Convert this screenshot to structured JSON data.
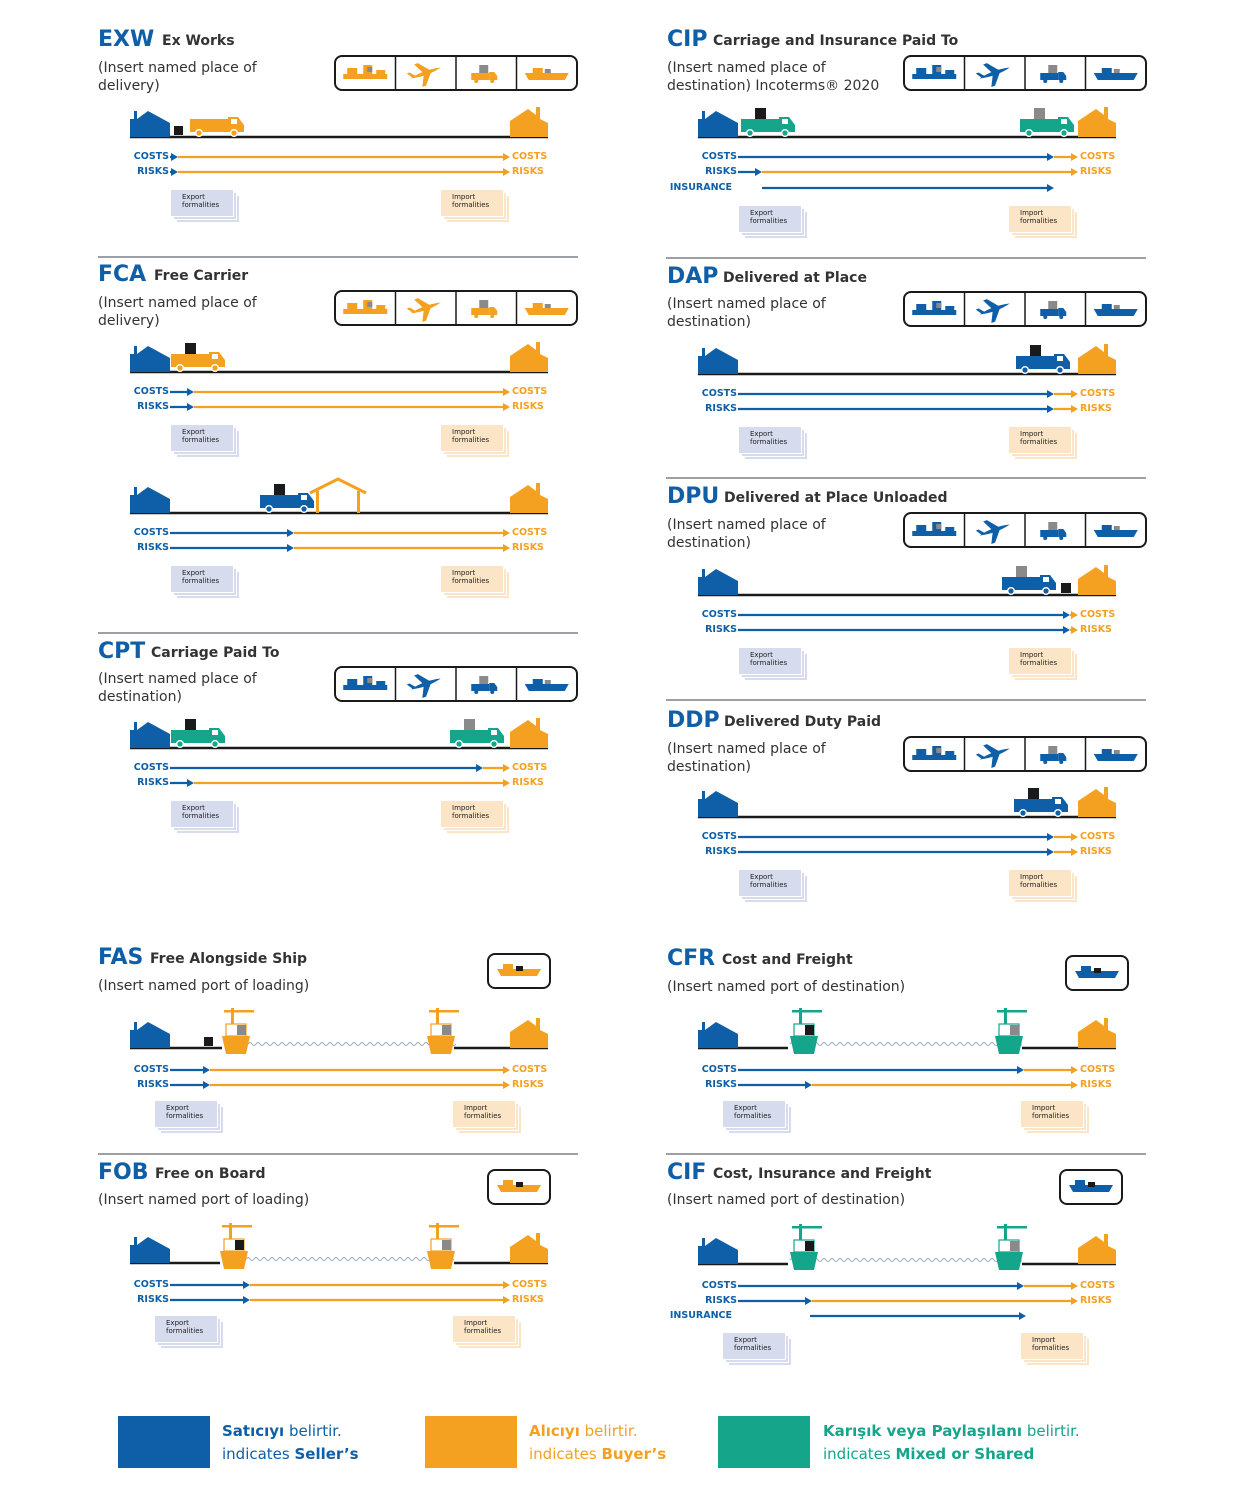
{
  "colors": {
    "seller": "#0e5fa8",
    "buyer": "#f4a020",
    "mixed": "#14a58b",
    "export_bg": "#d6dcee",
    "import_bg": "#fce5c6",
    "text": "#333333"
  },
  "labels": {
    "costs": "COSTS",
    "risks": "RISKS",
    "insurance": "INSURANCE",
    "export_1": "Export",
    "export_2": "formalities",
    "import_1": "Import",
    "import_2": "formalities"
  },
  "terms": {
    "exw": {
      "code": "EXW",
      "name": "Ex Works",
      "place": "(Insert named place of delivery)"
    },
    "fca": {
      "code": "FCA",
      "name": "Free Carrier",
      "place": "(Insert named place of delivery)"
    },
    "cpt": {
      "code": "CPT",
      "name": "Carriage Paid To",
      "place": "(Insert named place of destination)"
    },
    "cip": {
      "code": "CIP",
      "name": "Carriage and Insurance Paid To",
      "place": "(Insert named place of destination) Incoterms® 2020"
    },
    "dap": {
      "code": "DAP",
      "name": "Delivered at Place",
      "place": "(Insert named place of destination)"
    },
    "dpu": {
      "code": "DPU",
      "name": "Delivered at Place Unloaded",
      "place": "(Insert named place of destination)"
    },
    "ddp": {
      "code": "DDP",
      "name": "Delivered Duty Paid",
      "place": "(Insert named place of destination)"
    },
    "fas": {
      "code": "FAS",
      "name": "Free Alongside Ship",
      "place": "(Insert named port of loading)"
    },
    "fob": {
      "code": "FOB",
      "name": "Free on Board",
      "place": "(Insert named port of loading)"
    },
    "cfr": {
      "code": "CFR",
      "name": "Cost and Freight",
      "place": "(Insert named port of destination)"
    },
    "cif": {
      "code": "CIF",
      "name": "Cost, Insurance and Freight",
      "place": "(Insert named port of destination)"
    }
  },
  "legend": {
    "seller": {
      "tr_bold": "Satıcıyı",
      "tr_rest": " belirtir.",
      "en_pre": "indicates ",
      "en_bold": "Seller’s"
    },
    "buyer": {
      "tr_bold": "Alıcıyı",
      "tr_rest": " belirtir.",
      "en_pre": "indicates ",
      "en_bold": "Buyer’s"
    },
    "mixed": {
      "tr_bold": "Karışık veya Paylaşılanı",
      "tr_rest": "  belirtir.",
      "en_pre": "indicates ",
      "en_bold": "Mixed or Shared"
    }
  }
}
